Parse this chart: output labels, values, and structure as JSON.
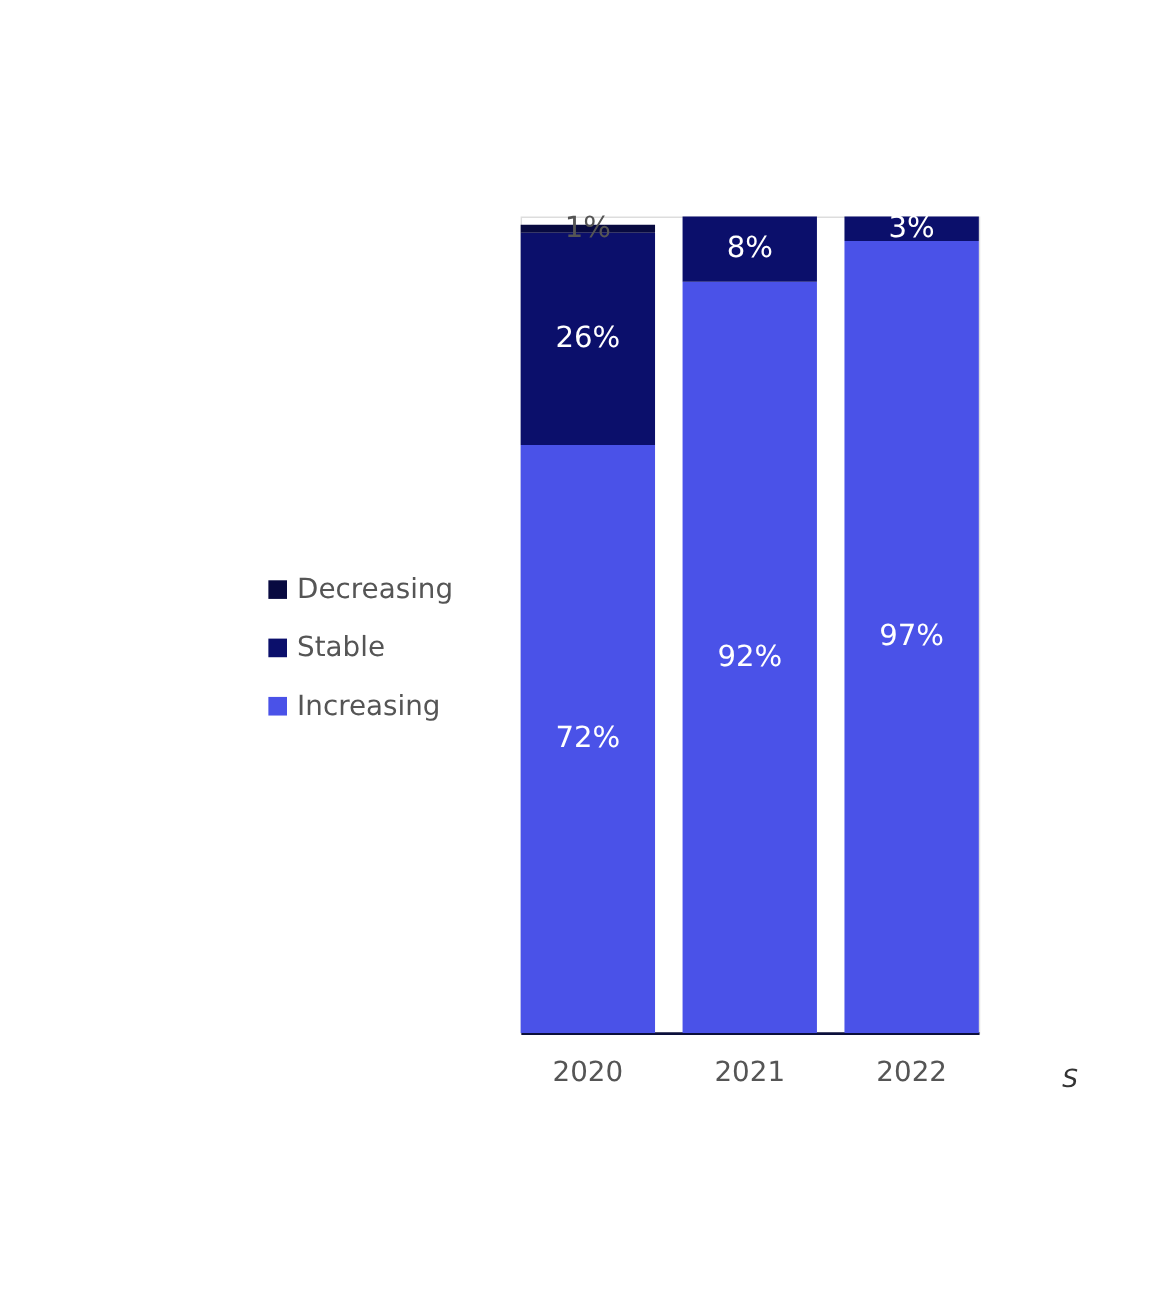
{
  "chart_data": {
    "type": "bar",
    "stacked": true,
    "legend": "left",
    "grid": false,
    "tick_labels": "x",
    "categories": [
      "2020",
      "2021",
      "2022"
    ],
    "series": [
      {
        "name": "Increasing",
        "color": "#4a52e8",
        "values": [
          72,
          92,
          97
        ],
        "value_labels": [
          "72%",
          "92%",
          "97%"
        ]
      },
      {
        "name": "Stable",
        "color": "#0b0f6b",
        "values": [
          26,
          8,
          3
        ],
        "value_labels": [
          "26%",
          "8%",
          "3%"
        ]
      },
      {
        "name": "Decreasing",
        "color": "#080a40",
        "values": [
          1,
          null,
          null
        ],
        "value_labels": [
          "1%",
          null,
          null
        ]
      }
    ],
    "annotations": [
      "S"
    ]
  }
}
